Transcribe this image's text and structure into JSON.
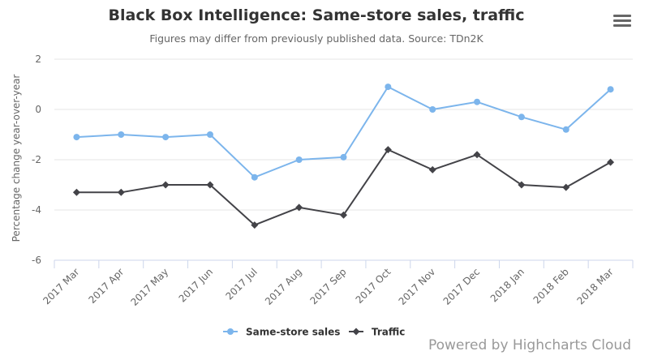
{
  "chart_data": {
    "type": "line",
    "title": "Black Box Intelligence: Same-store sales, traffic",
    "subtitle": "Figures may differ from previously published data. Source: TDn2K",
    "ylabel": "Percentage change year-over-year",
    "ylim": [
      -6,
      2
    ],
    "yticks": [
      "-6",
      "-4",
      "-2",
      "0",
      "2"
    ],
    "categories": [
      "2017 Mar",
      "2017 Apr",
      "2017 May",
      "2017 Jun",
      "2017 Jul",
      "2017 Aug",
      "2017 Sep",
      "2017 Oct",
      "2017 Nov",
      "2017 Dec",
      "2018 Jan",
      "2018 Feb",
      "2018 Mar"
    ],
    "series": [
      {
        "name": "Same-store sales",
        "color": "#7cb5ec",
        "marker": "circle",
        "values": [
          -1.1,
          -1.0,
          -1.1,
          -1.0,
          -2.7,
          -2.0,
          -1.9,
          0.9,
          0.0,
          0.3,
          -0.3,
          -0.8,
          0.8
        ]
      },
      {
        "name": "Traffic",
        "color": "#434348",
        "marker": "diamond",
        "values": [
          -3.3,
          -3.3,
          -3.0,
          -3.0,
          -4.6,
          -3.9,
          -4.2,
          -1.6,
          -2.4,
          -1.8,
          -3.0,
          -3.1,
          -2.1
        ]
      }
    ],
    "grid": true,
    "legend": "bottom-center"
  },
  "credits": "Powered by Highcharts Cloud",
  "menu_icon": "hamburger-menu-icon"
}
